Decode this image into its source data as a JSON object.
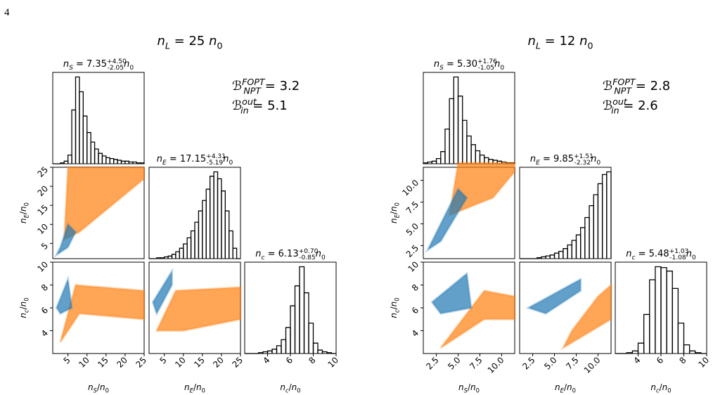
{
  "page_number": "4",
  "chart_data": [
    {
      "type": "corner",
      "title": "n_L = 25 n_0",
      "annotations": [
        "ℬ^{FOPT}_{NPT} = 3.2",
        "ℬ^{out}_{in} = 5.1"
      ],
      "variables": [
        {
          "label": "n_S/n_0",
          "lim": [
            1,
            25
          ],
          "ticks": [
            5,
            10,
            15,
            20,
            25
          ],
          "hist_title": "n_S = 7.35^{+4.50}_{-2.05}n_0",
          "bins": [
            1,
            2,
            3,
            4,
            5,
            6,
            7,
            8,
            9,
            10,
            11,
            12,
            13,
            14,
            15,
            16,
            17,
            18,
            19,
            20,
            21,
            22,
            23,
            24,
            25
          ],
          "counts": [
            0,
            0,
            1,
            3,
            10,
            62,
            100,
            83,
            55,
            36,
            25,
            17,
            12,
            9,
            7,
            6,
            5,
            4,
            3,
            3,
            2,
            2,
            1,
            1
          ]
        },
        {
          "label": "n_E/n_0",
          "lim": [
            1,
            25
          ],
          "ticks": [
            5,
            10,
            15,
            20,
            25
          ],
          "hist_title": "n_E = 17.15^{+4.31}_{-5.19}n_0",
          "bins": [
            1,
            2,
            3,
            4,
            5,
            6,
            7,
            8,
            9,
            10,
            11,
            12,
            13,
            14,
            15,
            16,
            17,
            18,
            19,
            20,
            21,
            22,
            23,
            24,
            25
          ],
          "counts": [
            0,
            0,
            1,
            1,
            2,
            3,
            5,
            8,
            12,
            17,
            24,
            32,
            42,
            55,
            67,
            80,
            95,
            100,
            92,
            78,
            55,
            32,
            12,
            0
          ]
        },
        {
          "label": "n_c/n_0",
          "lim": [
            2,
            10
          ],
          "ticks": [
            4,
            6,
            8,
            10
          ],
          "hist_title": "n_c = 6.13^{+0.70}_{-0.85}n_0",
          "bins": [
            2,
            2.4,
            2.8,
            3.2,
            3.6,
            4,
            4.4,
            4.8,
            5.2,
            5.6,
            6,
            6.4,
            6.8,
            7.2,
            7.6,
            8,
            8.4,
            8.8,
            9.2,
            9.6,
            10
          ],
          "counts": [
            0,
            0,
            0,
            1,
            2,
            3,
            5,
            9,
            16,
            30,
            55,
            78,
            100,
            70,
            35,
            12,
            4,
            2,
            1,
            0
          ]
        }
      ],
      "scatter": [
        {
          "regions": [
            {
              "color": "#ff7f0e",
              "x": [
                4,
                5,
                25,
                25,
                8
              ],
              "y": [
                6,
                25,
                25,
                22,
                8
              ]
            },
            {
              "color": "#1f77b4",
              "x": [
                2,
                5,
                7,
                5,
                3
              ],
              "y": [
                2,
                4,
                8,
                10,
                4
              ]
            }
          ]
        },
        {
          "regions": [
            {
              "color": "#ff7f0e",
              "x": [
                3,
                7,
                25,
                25,
                8
              ],
              "y": [
                3,
                8,
                7.5,
                5,
                5.5
              ]
            },
            {
              "color": "#1f77b4",
              "x": [
                2,
                5,
                6,
                3
              ],
              "y": [
                6,
                8.5,
                6,
                5.5
              ]
            }
          ]
        },
        {
          "regions": [
            {
              "color": "#ff7f0e",
              "x": [
                3,
                8,
                25,
                25,
                10
              ],
              "y": [
                4,
                7.5,
                7.8,
                5,
                4
              ]
            },
            {
              "color": "#1f77b4",
              "x": [
                2,
                7,
                7,
                3
              ],
              "y": [
                6.5,
                9.2,
                8,
                5.5
              ]
            }
          ]
        }
      ]
    },
    {
      "type": "corner",
      "title": "n_L = 12 n_0",
      "annotations": [
        "ℬ^{FOPT}_{NPT} = 2.8",
        "ℬ^{out}_{in} = 2.6"
      ],
      "variables": [
        {
          "label": "n_S/n_0",
          "lim": [
            1,
            11.5
          ],
          "ticks": [
            {
              "value": 2.5,
              "label": "2.5"
            },
            {
              "value": 5,
              "label": "5.0"
            },
            {
              "value": 7.5,
              "label": "7.5"
            },
            {
              "value": 10,
              "label": "10.0"
            }
          ],
          "hist_title": "n_S = 5.30^{+1.76}_{-1.05}n_0",
          "bins": [
            1,
            1.5,
            2,
            2.5,
            3,
            3.5,
            4,
            4.5,
            5,
            5.5,
            6,
            6.5,
            7,
            7.5,
            8,
            8.5,
            9,
            9.5,
            10,
            10.5,
            11,
            11.5
          ],
          "counts": [
            1,
            2,
            3,
            6,
            14,
            40,
            75,
            100,
            78,
            50,
            32,
            22,
            15,
            10,
            7,
            5,
            4,
            3,
            2,
            1,
            1
          ]
        },
        {
          "label": "n_E/n_0",
          "lim": [
            1,
            11.5
          ],
          "ticks": [
            {
              "value": 2.5,
              "label": "2.5"
            },
            {
              "value": 5,
              "label": "5.0"
            },
            {
              "value": 7.5,
              "label": "7.5"
            },
            {
              "value": 10,
              "label": "10.0"
            }
          ],
          "hist_title": "n_E = 9.85^{+1.51}_{-2.32}n_0",
          "bins": [
            1,
            1.5,
            2,
            2.5,
            3,
            3.5,
            4,
            4.5,
            5,
            5.5,
            6,
            6.5,
            7,
            7.5,
            8,
            8.5,
            9,
            9.5,
            10,
            10.5,
            11,
            11.5
          ],
          "counts": [
            0,
            0,
            0,
            0,
            1,
            2,
            3,
            4,
            6,
            8,
            11,
            15,
            20,
            26,
            34,
            45,
            58,
            70,
            82,
            92,
            95
          ]
        },
        {
          "label": "n_c/n_0",
          "lim": [
            2,
            10
          ],
          "ticks": [
            4,
            6,
            8,
            10
          ],
          "hist_title": "n_c = 5.48^{+1.03}_{-1.08}n_0",
          "bins": [
            2,
            2.5,
            3,
            3.5,
            4,
            4.5,
            5,
            5.5,
            6,
            6.5,
            7,
            7.5,
            8,
            8.5,
            9,
            9.5,
            10
          ],
          "counts": [
            0,
            0,
            1,
            3,
            12,
            45,
            85,
            100,
            99,
            95,
            75,
            35,
            10,
            3,
            1,
            0
          ]
        }
      ],
      "scatter": [
        {
          "regions": [
            {
              "color": "#ff7f0e",
              "x": [
                4,
                5,
                11.5,
                11.5,
                9
              ],
              "y": [
                6,
                12,
                12,
                11,
                8
              ]
            },
            {
              "color": "#1f77b4",
              "x": [
                1.5,
                3,
                6,
                5,
                2
              ],
              "y": [
                2,
                3,
                8,
                9,
                3
              ]
            }
          ]
        },
        {
          "regions": [
            {
              "color": "#ff7f0e",
              "x": [
                3,
                8,
                11.5,
                11.5,
                8
              ],
              "y": [
                2.5,
                7.5,
                7,
                5,
                5
              ]
            },
            {
              "color": "#1f77b4",
              "x": [
                2,
                6,
                6.5,
                3
              ],
              "y": [
                6.5,
                9,
                6,
                5.5
              ]
            }
          ]
        },
        {
          "regions": [
            {
              "color": "#ff7f0e",
              "x": [
                6,
                11.5,
                11.5,
                10,
                7
              ],
              "y": [
                2.5,
                5,
                8,
                7,
                4
              ]
            },
            {
              "color": "#1f77b4",
              "x": [
                2,
                8,
                8,
                4
              ],
              "y": [
                6,
                8.5,
                7.5,
                5.5
              ]
            }
          ]
        }
      ]
    }
  ]
}
